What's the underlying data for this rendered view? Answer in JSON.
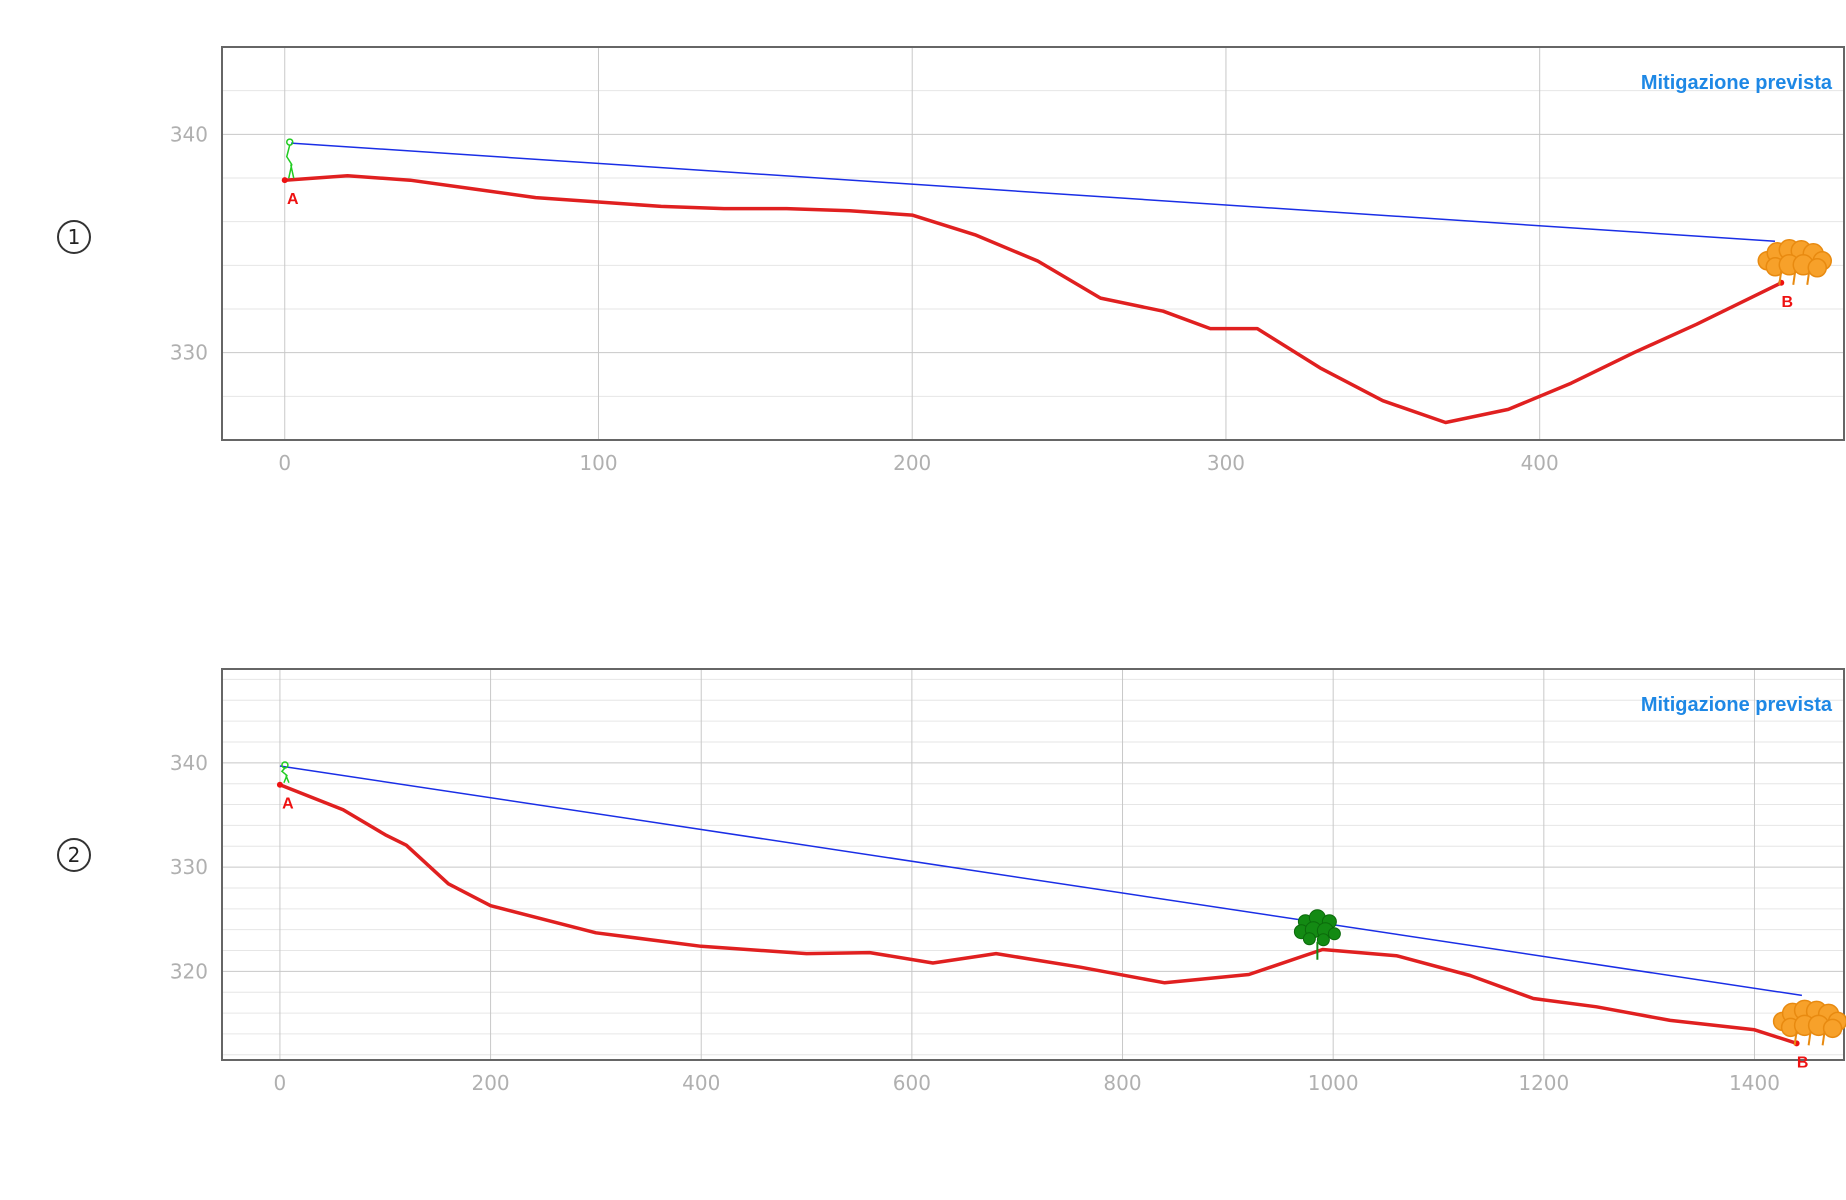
{
  "chart_data": [
    {
      "type": "line",
      "panel_label": "1",
      "annotation": "Mitigazione prevista",
      "endpoint_labels": {
        "start": "A",
        "end": "B"
      },
      "xlim": [
        -20,
        497
      ],
      "ylim": [
        326,
        344
      ],
      "x_ticks": [
        0,
        100,
        200,
        300,
        400
      ],
      "y_ticks": [
        330,
        340
      ],
      "grid": true,
      "markers": {
        "observer": "person-icon",
        "target": "orange-tree-icon"
      },
      "series": [
        {
          "role": "terrain-profile",
          "color": "#e02020",
          "x": [
            0,
            20,
            40,
            60,
            80,
            100,
            120,
            140,
            160,
            180,
            200,
            220,
            240,
            260,
            280,
            295,
            310,
            330,
            350,
            370,
            390,
            410,
            430,
            450,
            477
          ],
          "y": [
            337.9,
            338.1,
            337.9,
            337.5,
            337.1,
            336.9,
            336.7,
            336.6,
            336.6,
            336.5,
            336.3,
            335.4,
            334.2,
            332.5,
            331.9,
            331.1,
            331.1,
            329.3,
            327.8,
            326.8,
            327.4,
            328.6,
            330.0,
            331.3,
            333.2
          ]
        },
        {
          "role": "line-of-sight",
          "color": "#1a2ee6",
          "x": [
            2,
            475
          ],
          "y": [
            339.6,
            335.1
          ]
        }
      ]
    },
    {
      "type": "line",
      "panel_label": "2",
      "annotation": "Mitigazione prevista",
      "endpoint_labels": {
        "start": "A",
        "end": "B"
      },
      "xlim": [
        -55,
        1485
      ],
      "ylim": [
        311.5,
        349
      ],
      "x_ticks": [
        0,
        200,
        400,
        600,
        800,
        1000,
        1200,
        1400
      ],
      "y_ticks": [
        320,
        330,
        340
      ],
      "grid": true,
      "markers": {
        "observer": "person-icon",
        "obstacle": "green-tree-icon",
        "target": "orange-tree-icon"
      },
      "series": [
        {
          "role": "terrain-profile",
          "color": "#e02020",
          "x": [
            0,
            60,
            100,
            120,
            160,
            200,
            300,
            400,
            500,
            560,
            620,
            680,
            760,
            840,
            920,
            990,
            1060,
            1130,
            1190,
            1250,
            1320,
            1400,
            1440
          ],
          "y": [
            337.9,
            335.5,
            333.1,
            332.1,
            328.4,
            326.3,
            323.7,
            322.4,
            321.7,
            321.8,
            320.8,
            321.7,
            320.4,
            318.9,
            319.7,
            322.1,
            321.5,
            319.6,
            317.4,
            316.6,
            315.3,
            314.4,
            313.1
          ]
        },
        {
          "role": "line-of-sight",
          "color": "#1a2ee6",
          "x": [
            0,
            1445
          ],
          "y": [
            339.7,
            317.7
          ]
        }
      ]
    }
  ]
}
